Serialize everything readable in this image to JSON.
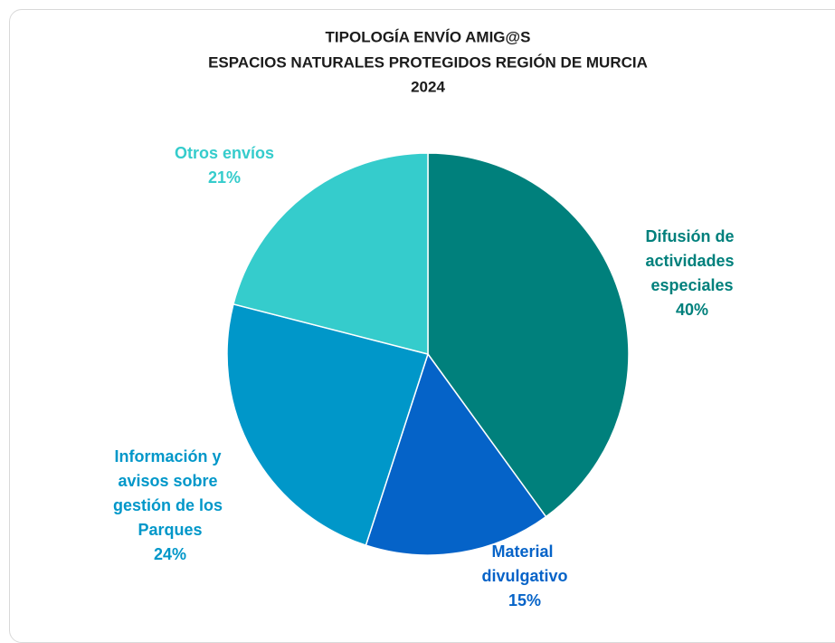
{
  "chart_data": {
    "type": "pie",
    "title": [
      "TIPOLOGÍA ENVÍO AMIG@S",
      "ESPACIOS NATURALES PROTEGIDOS REGIÓN DE MURCIA",
      "2024"
    ],
    "categories": [
      "Difusión de actividades especiales",
      "Material divulgativo",
      "Información y avisos sobre gestión de los Parques",
      "Otros envíos"
    ],
    "values": [
      40,
      15,
      24,
      21
    ],
    "value_labels": [
      "40%",
      "15%",
      "24%",
      "21%"
    ],
    "colors": [
      "#00807c",
      "#0563c8",
      "#0097c9",
      "#35cccc"
    ]
  }
}
